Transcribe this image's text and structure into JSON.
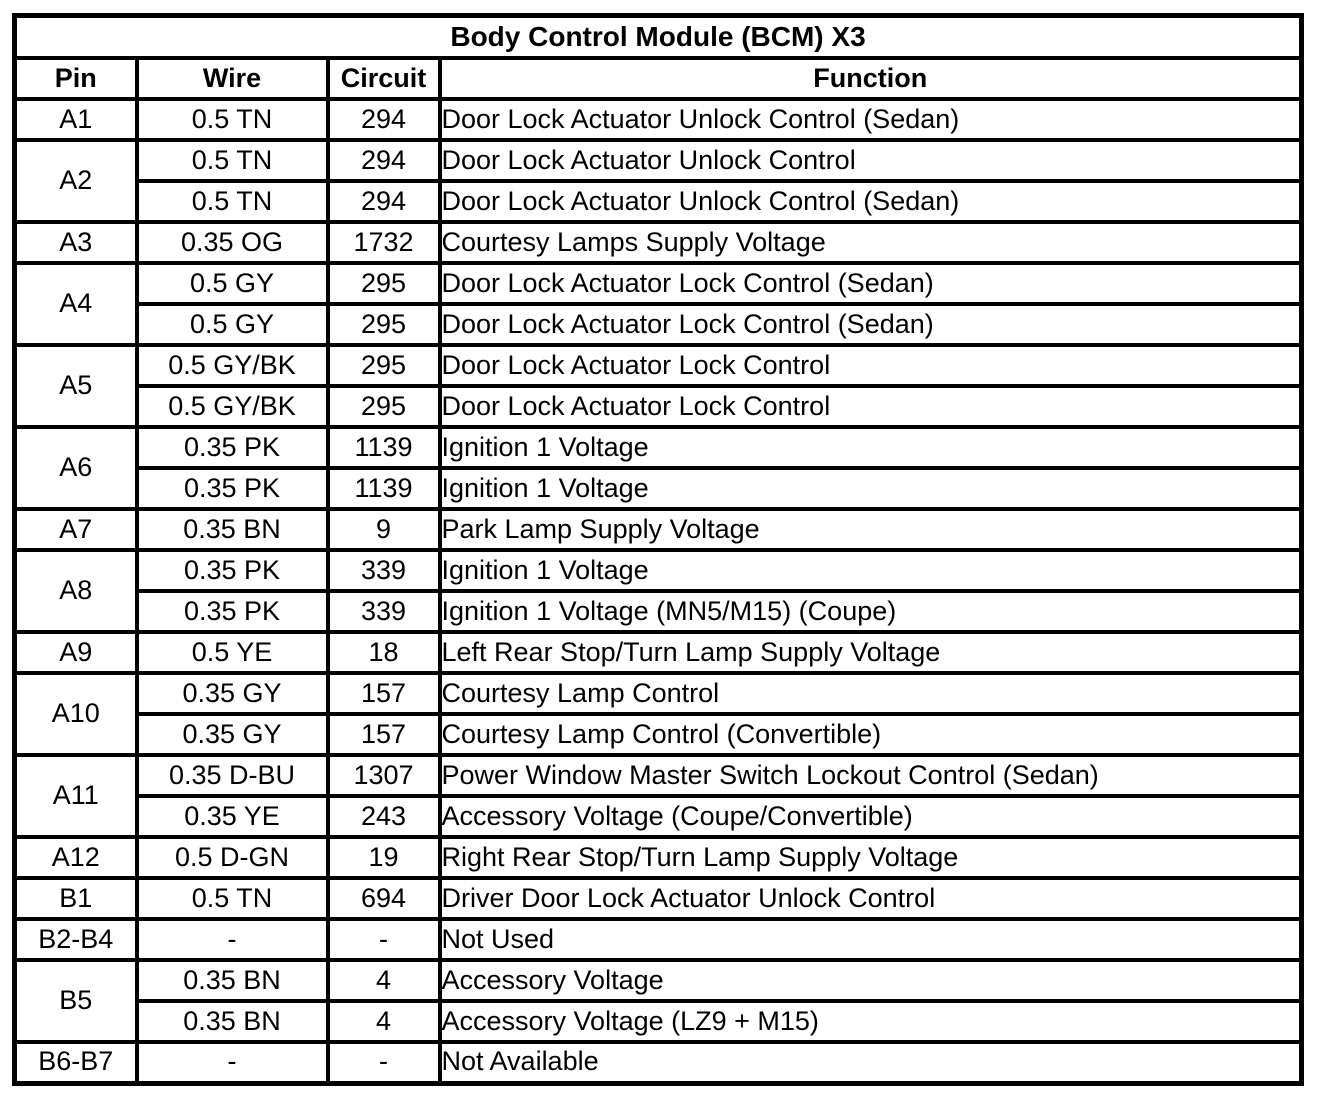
{
  "table": {
    "title": "Body Control Module (BCM) X3",
    "columns": [
      "Pin",
      "Wire",
      "Circuit",
      "Function"
    ],
    "rows": [
      {
        "pin": "A1",
        "entries": [
          {
            "wire": "0.5 TN",
            "circuit": "294",
            "function": "Door Lock Actuator Unlock Control (Sedan)"
          }
        ]
      },
      {
        "pin": "A2",
        "entries": [
          {
            "wire": "0.5 TN",
            "circuit": "294",
            "function": "Door Lock Actuator Unlock Control"
          },
          {
            "wire": "0.5 TN",
            "circuit": "294",
            "function": "Door Lock Actuator Unlock Control (Sedan)"
          }
        ]
      },
      {
        "pin": "A3",
        "entries": [
          {
            "wire": "0.35 OG",
            "circuit": "1732",
            "function": "Courtesy Lamps Supply Voltage"
          }
        ]
      },
      {
        "pin": "A4",
        "entries": [
          {
            "wire": "0.5 GY",
            "circuit": "295",
            "function": "Door Lock Actuator Lock Control (Sedan)"
          },
          {
            "wire": "0.5 GY",
            "circuit": "295",
            "function": "Door Lock Actuator Lock Control (Sedan)"
          }
        ]
      },
      {
        "pin": "A5",
        "entries": [
          {
            "wire": "0.5 GY/BK",
            "circuit": "295",
            "function": "Door Lock Actuator Lock Control"
          },
          {
            "wire": "0.5 GY/BK",
            "circuit": "295",
            "function": "Door Lock Actuator Lock Control"
          }
        ]
      },
      {
        "pin": "A6",
        "entries": [
          {
            "wire": "0.35 PK",
            "circuit": "1139",
            "function": "Ignition 1 Voltage"
          },
          {
            "wire": "0.35 PK",
            "circuit": "1139",
            "function": "Ignition 1 Voltage"
          }
        ]
      },
      {
        "pin": "A7",
        "entries": [
          {
            "wire": "0.35 BN",
            "circuit": "9",
            "function": "Park Lamp Supply Voltage"
          }
        ]
      },
      {
        "pin": "A8",
        "entries": [
          {
            "wire": "0.35 PK",
            "circuit": "339",
            "function": "Ignition 1 Voltage"
          },
          {
            "wire": "0.35 PK",
            "circuit": "339",
            "function": "Ignition 1 Voltage (MN5/M15) (Coupe)"
          }
        ]
      },
      {
        "pin": "A9",
        "entries": [
          {
            "wire": "0.5 YE",
            "circuit": "18",
            "function": "Left Rear Stop/Turn Lamp Supply Voltage"
          }
        ]
      },
      {
        "pin": "A10",
        "entries": [
          {
            "wire": "0.35 GY",
            "circuit": "157",
            "function": "Courtesy Lamp Control"
          },
          {
            "wire": "0.35 GY",
            "circuit": "157",
            "function": "Courtesy Lamp Control (Convertible)"
          }
        ]
      },
      {
        "pin": "A11",
        "entries": [
          {
            "wire": "0.35 D-BU",
            "circuit": "1307",
            "function": "Power Window Master Switch Lockout Control (Sedan)"
          },
          {
            "wire": "0.35 YE",
            "circuit": "243",
            "function": "Accessory Voltage (Coupe/Convertible)"
          }
        ]
      },
      {
        "pin": "A12",
        "entries": [
          {
            "wire": "0.5 D-GN",
            "circuit": "19",
            "function": "Right Rear Stop/Turn Lamp Supply Voltage"
          }
        ]
      },
      {
        "pin": "B1",
        "entries": [
          {
            "wire": "0.5 TN",
            "circuit": "694",
            "function": "Driver Door Lock Actuator Unlock Control"
          }
        ]
      },
      {
        "pin": "B2-B4",
        "entries": [
          {
            "wire": "-",
            "circuit": "-",
            "function": "Not Used"
          }
        ]
      },
      {
        "pin": "B5",
        "entries": [
          {
            "wire": "0.35 BN",
            "circuit": "4",
            "function": "Accessory Voltage"
          },
          {
            "wire": "0.35 BN",
            "circuit": "4",
            "function": "Accessory Voltage (LZ9 + M15)"
          }
        ]
      },
      {
        "pin": "B6-B7",
        "entries": [
          {
            "wire": "-",
            "circuit": "-",
            "function": "Not Available"
          }
        ]
      }
    ]
  }
}
